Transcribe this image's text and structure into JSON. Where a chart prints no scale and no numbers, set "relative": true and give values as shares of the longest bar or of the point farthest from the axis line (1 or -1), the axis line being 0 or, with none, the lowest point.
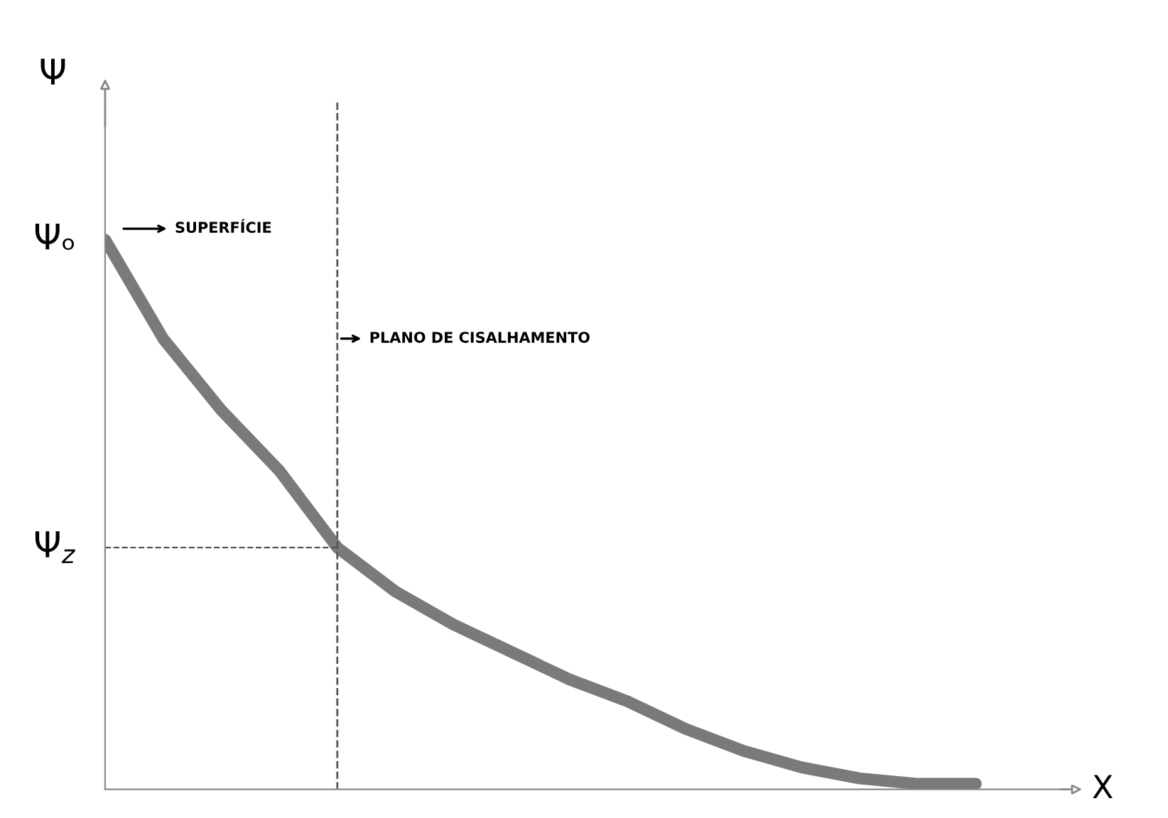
{
  "chart_data": {
    "type": "line",
    "relative": true,
    "xlabel": "X",
    "ylabel": "Ψ",
    "categories": [
      null,
      null,
      null,
      null,
      null,
      null,
      null,
      null,
      null,
      null,
      null,
      null,
      null,
      null,
      null,
      null
    ],
    "series": [
      {
        "color": "#7a7a7a",
        "values": [
          1,
          0.82,
          0.69,
          0.58,
          0.44,
          0.36,
          0.3,
          0.25,
          0.2,
          0.16,
          0.11,
          0.07,
          0.04,
          0.02,
          0.01,
          0.01
        ]
      }
    ],
    "ref_lines": [
      {
        "axis": "y",
        "value": 0.44,
        "label": "Ψ$_{z}$",
        "line_style": "dashed",
        "color": "#555555"
      }
    ],
    "annotations": [
      "Ψₒ",
      "SUPERFÍCIE",
      "PLANO DE CISALHAMENTO"
    ],
    "legend": false,
    "marker": "none",
    "line_style": "solid"
  }
}
